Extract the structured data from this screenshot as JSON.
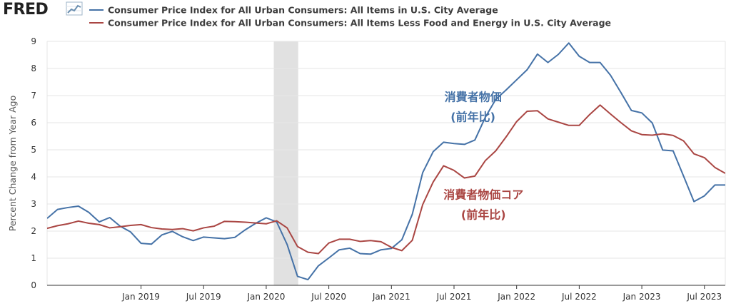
{
  "brand": {
    "logo_text": "FRED"
  },
  "chart_data": {
    "type": "line",
    "ylabel": "Percent Change from Year Ago",
    "ylim": [
      0,
      9
    ],
    "yticks": [
      0,
      1,
      2,
      3,
      4,
      5,
      6,
      7,
      8,
      9
    ],
    "xlim": [
      "2018-04",
      "2023-09"
    ],
    "xticks": [
      {
        "label": "Jan 2019",
        "date": "2019-01"
      },
      {
        "label": "Jul 2019",
        "date": "2019-07"
      },
      {
        "label": "Jan 2020",
        "date": "2020-01"
      },
      {
        "label": "Jul 2020",
        "date": "2020-07"
      },
      {
        "label": "Jan 2021",
        "date": "2021-01"
      },
      {
        "label": "Jul 2021",
        "date": "2021-07"
      },
      {
        "label": "Jan 2022",
        "date": "2022-01"
      },
      {
        "label": "Jul 2022",
        "date": "2022-07"
      },
      {
        "label": "Jan 2023",
        "date": "2023-01"
      },
      {
        "label": "Jul 2023",
        "date": "2023-07"
      }
    ],
    "grid": true,
    "recession": {
      "start": "2020-02",
      "end": "2020-04"
    },
    "x": [
      "2018-04",
      "2018-05",
      "2018-06",
      "2018-07",
      "2018-08",
      "2018-09",
      "2018-10",
      "2018-11",
      "2018-12",
      "2019-01",
      "2019-02",
      "2019-03",
      "2019-04",
      "2019-05",
      "2019-06",
      "2019-07",
      "2019-08",
      "2019-09",
      "2019-10",
      "2019-11",
      "2019-12",
      "2020-01",
      "2020-02",
      "2020-03",
      "2020-04",
      "2020-05",
      "2020-06",
      "2020-07",
      "2020-08",
      "2020-09",
      "2020-10",
      "2020-11",
      "2020-12",
      "2021-01",
      "2021-02",
      "2021-03",
      "2021-04",
      "2021-05",
      "2021-06",
      "2021-07",
      "2021-08",
      "2021-09",
      "2021-10",
      "2021-11",
      "2021-12",
      "2022-01",
      "2022-02",
      "2022-03",
      "2022-04",
      "2022-05",
      "2022-06",
      "2022-07",
      "2022-08",
      "2022-09",
      "2022-10",
      "2022-11",
      "2022-12",
      "2023-01",
      "2023-02",
      "2023-03",
      "2023-04",
      "2023-05",
      "2023-06",
      "2023-07",
      "2023-08",
      "2023-09"
    ],
    "series": [
      {
        "name": "Consumer Price Index for All Urban Consumers: All Items in U.S. City Average",
        "color": "#4572a7",
        "values": [
          2.47,
          2.8,
          2.87,
          2.92,
          2.69,
          2.34,
          2.5,
          2.18,
          1.97,
          1.55,
          1.52,
          1.86,
          1.99,
          1.79,
          1.65,
          1.78,
          1.75,
          1.72,
          1.77,
          2.05,
          2.29,
          2.49,
          2.34,
          1.51,
          0.33,
          0.21,
          0.72,
          1.01,
          1.31,
          1.37,
          1.17,
          1.15,
          1.31,
          1.36,
          1.68,
          2.62,
          4.16,
          4.93,
          5.28,
          5.23,
          5.2,
          5.36,
          6.2,
          6.86,
          7.21,
          7.58,
          7.95,
          8.53,
          8.22,
          8.52,
          8.94,
          8.45,
          8.22,
          8.22,
          7.75,
          7.11,
          6.45,
          6.36,
          5.99,
          4.99,
          4.96,
          4.03,
          3.09,
          3.3,
          3.7,
          3.7
        ]
      },
      {
        "name": "Consumer Price Index for All Urban Consumers: All Items Less Food and Energy in U.S. City Average",
        "color": "#aa4643",
        "values": [
          2.1,
          2.2,
          2.27,
          2.37,
          2.29,
          2.24,
          2.12,
          2.16,
          2.21,
          2.24,
          2.13,
          2.08,
          2.06,
          2.09,
          2.01,
          2.12,
          2.18,
          2.36,
          2.35,
          2.33,
          2.3,
          2.27,
          2.38,
          2.12,
          1.43,
          1.22,
          1.17,
          1.56,
          1.7,
          1.7,
          1.62,
          1.65,
          1.61,
          1.4,
          1.28,
          1.66,
          2.98,
          3.81,
          4.41,
          4.24,
          3.96,
          4.03,
          4.6,
          4.96,
          5.48,
          6.04,
          6.42,
          6.44,
          6.14,
          6.02,
          5.9,
          5.9,
          6.3,
          6.65,
          6.32,
          6.0,
          5.7,
          5.56,
          5.54,
          5.59,
          5.53,
          5.33,
          4.85,
          4.71,
          4.35,
          4.13
        ]
      }
    ],
    "annotations": [
      {
        "lines": [
          "消費者物価",
          "(前年比)"
        ],
        "color": "#4572a7",
        "x": "2021-08",
        "y": 6.8
      },
      {
        "lines": [
          "消費者物価コア",
          "(前年比)"
        ],
        "color": "#aa4643",
        "x": "2021-09",
        "y": 3.2
      }
    ]
  }
}
